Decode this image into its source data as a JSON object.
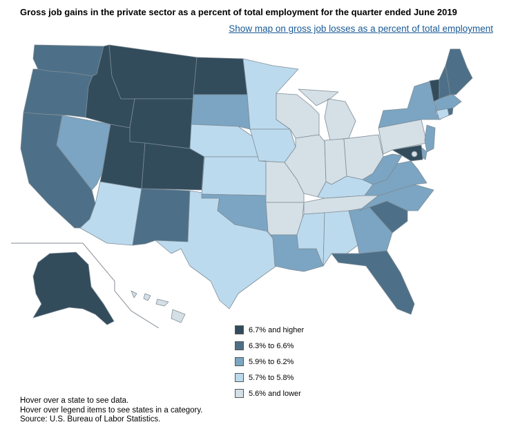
{
  "title": "Gross job gains in the private sector as a percent of total employment for the quarter ended June 2019",
  "alt_link": "Show map on gross job losses as a percent of total employment",
  "legend": [
    {
      "label": "6.7% and higher",
      "color": "#324c5c"
    },
    {
      "label": "6.3% to 6.6%",
      "color": "#4d7088"
    },
    {
      "label": "5.9% to 6.2%",
      "color": "#7ba5c2"
    },
    {
      "label": "5.7% to 5.8%",
      "color": "#bcdaee"
    },
    {
      "label": "5.6% and lower",
      "color": "#d4dfe6"
    }
  ],
  "state_categories": {
    "WA": 1,
    "OR": 1,
    "CA": 1,
    "NV": 2,
    "ID": 0,
    "MT": 0,
    "WY": 0,
    "UT": 0,
    "CO": 0,
    "AZ": 3,
    "NM": 1,
    "TX": 3,
    "ND": 0,
    "SD": 2,
    "NE": 3,
    "KS": 3,
    "OK": 2,
    "MN": 3,
    "IA": 3,
    "MO": 4,
    "AR": 4,
    "LA": 2,
    "WI": 4,
    "IL": 4,
    "MI": 4,
    "IN": 4,
    "OH": 4,
    "KY": 3,
    "TN": 4,
    "MS": 3,
    "AL": 3,
    "GA": 2,
    "FL": 1,
    "SC": 1,
    "NC": 2,
    "VA": 2,
    "WV": 2,
    "PA": 4,
    "NY": 2,
    "VT": 0,
    "NH": 1,
    "ME": 1,
    "MA": 2,
    "CT": 3,
    "RI": 1,
    "NJ": 2,
    "DE": 2,
    "MD": 0,
    "DC": 4,
    "AK": 0,
    "HI": 4
  },
  "notes": [
    "Hover over a state to see data.",
    "Hover over legend items to see states in a category.",
    "Source: U.S. Bureau of Labor Statistics."
  ]
}
